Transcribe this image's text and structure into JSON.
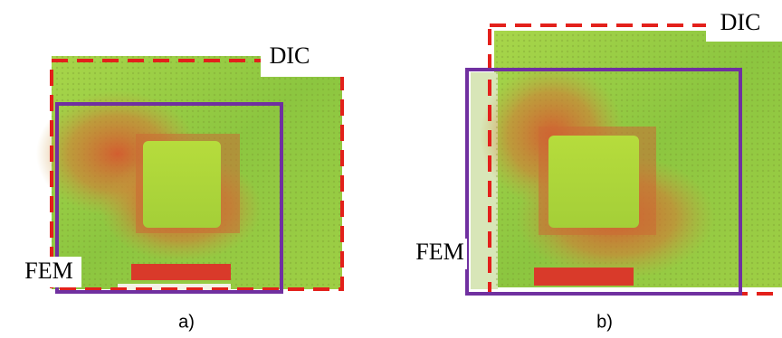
{
  "panels": [
    {
      "dic_label": "DIC",
      "fem_label": "FEM",
      "caption": "a)"
    },
    {
      "dic_label": "DIC",
      "fem_label": "FEM",
      "caption": "b)"
    }
  ]
}
